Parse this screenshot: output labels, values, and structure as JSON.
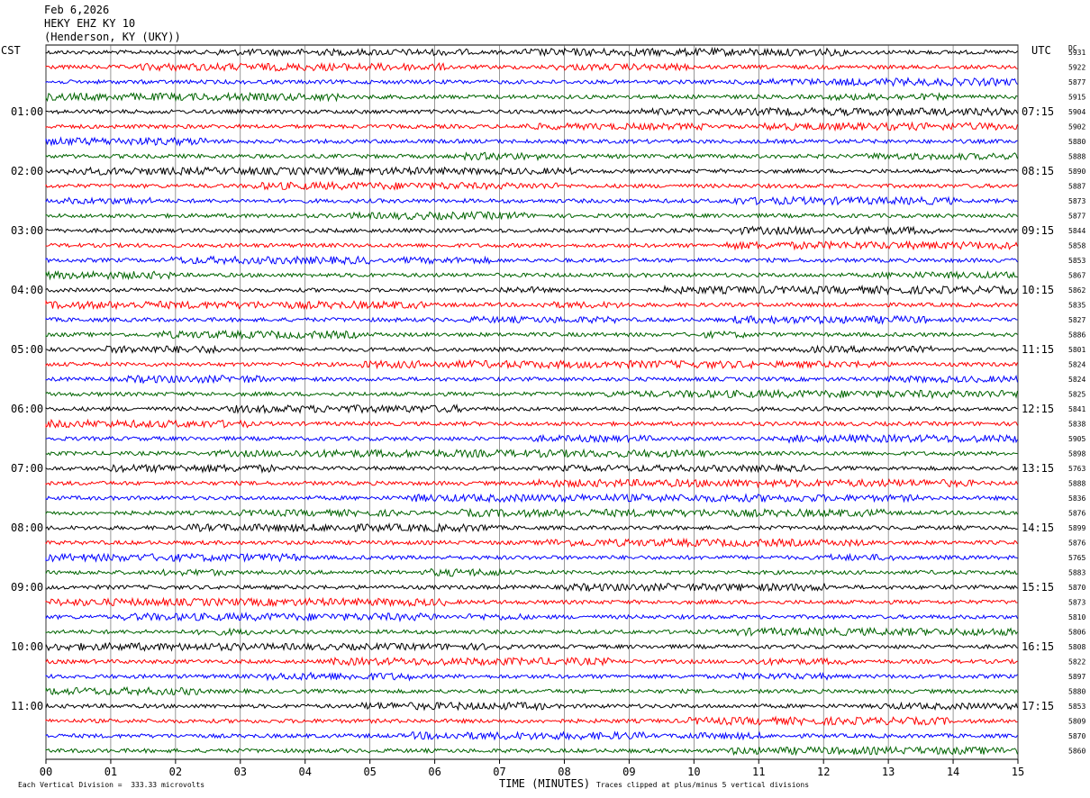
{
  "header": {
    "date": "Feb 6,2026",
    "station": "HEKY EHZ KY 10",
    "location": "(Henderson, KY (UKY))"
  },
  "left_axis_title": "CST",
  "right_axis_title": "UTC",
  "dc_label": "DC",
  "footer": {
    "scale_note": "Each Vertical Division =  333.33 microvolts",
    "xlabel": "TIME (MINUTES)",
    "clip_note": "Traces clipped at plus/minus 5 vertical divisions"
  },
  "chart_data": {
    "type": "line",
    "title": "HEKY EHZ KY 10",
    "xlabel": "TIME (MINUTES)",
    "xlim": [
      0,
      15
    ],
    "x_ticks": [
      "00",
      "01",
      "02",
      "03",
      "04",
      "05",
      "06",
      "07",
      "08",
      "09",
      "10",
      "11",
      "12",
      "13",
      "14",
      "15"
    ],
    "trace_colors": [
      "#000000",
      "#ff0000",
      "#0000ff",
      "#006400"
    ],
    "row_count": 48,
    "left_time_labels": [
      "01:00",
      "02:00",
      "03:00",
      "04:00",
      "05:00",
      "06:00",
      "07:00",
      "08:00",
      "09:00",
      "10:00",
      "11:00"
    ],
    "right_time_labels": [
      "07:15",
      "08:15",
      "09:15",
      "10:15",
      "11:15",
      "12:15",
      "13:15",
      "14:15",
      "15:15",
      "16:15",
      "17:15"
    ],
    "dc_offsets": [
      "5931",
      "5922",
      "5877",
      "5915",
      "5904",
      "5902",
      "5880",
      "5888",
      "5890",
      "5887",
      "5873",
      "5877",
      "5844",
      "5858",
      "5853",
      "5867",
      "5862",
      "5835",
      "5827",
      "5886",
      "5801",
      "5824",
      "5824",
      "5825",
      "5841",
      "5838",
      "5905",
      "5898",
      "5763",
      "5888",
      "5836",
      "5876",
      "5899",
      "5876",
      "5765",
      "5883",
      "5870",
      "5873",
      "5810",
      "5806",
      "5808",
      "5822",
      "5897",
      "5880",
      "5853",
      "5809",
      "5870",
      "5860"
    ]
  }
}
